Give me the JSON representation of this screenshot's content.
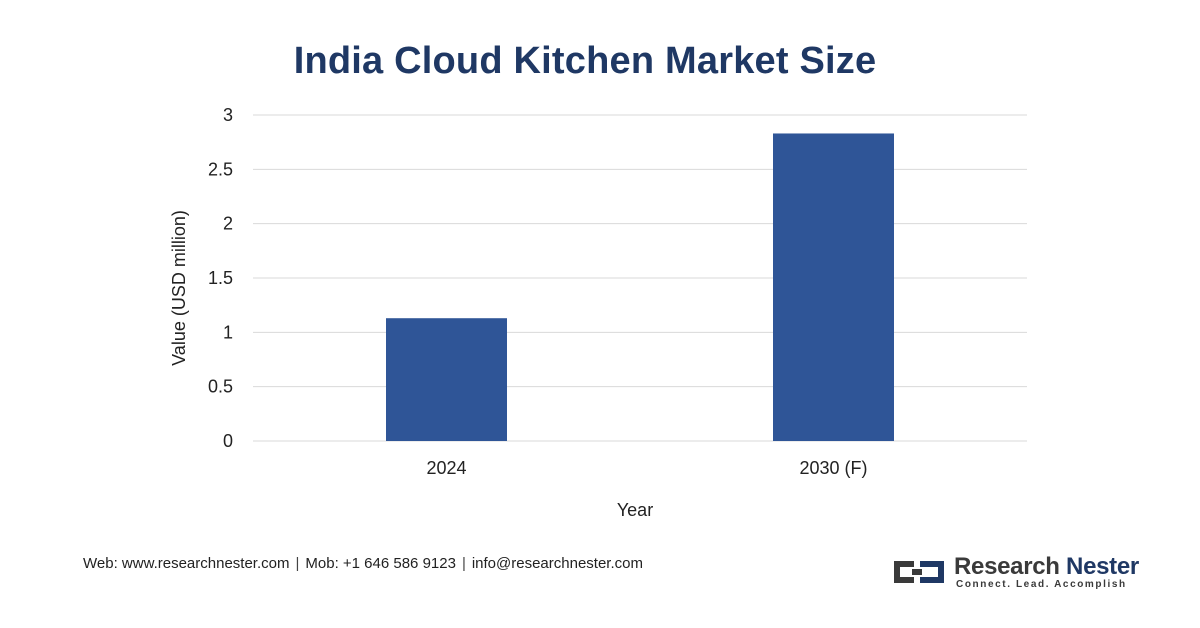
{
  "chart_data": {
    "type": "bar",
    "title": "India Cloud Kitchen Market Size",
    "xlabel": "Year",
    "ylabel": "Value (USD million)",
    "categories": [
      "2024",
      "2030 (F)"
    ],
    "values": [
      1.13,
      2.83
    ],
    "ylim": [
      0,
      3
    ],
    "yticks": [
      0,
      0.5,
      1,
      1.5,
      2,
      2.5,
      3
    ],
    "ytick_labels": [
      "0",
      "0.5",
      "1",
      "1.5",
      "2",
      "2.5",
      "3"
    ],
    "grid": true,
    "legend": "none",
    "bar_color": "#2f5597"
  },
  "footer": {
    "web": "Web: www.researchnester.com",
    "mob": "Mob: +1 646 586 9123",
    "email": "info@researchnester.com",
    "separator": "|"
  },
  "brand": {
    "name_part1": "Research",
    "name_part2": "Nester",
    "tagline": "Connect. Lead. Accomplish"
  },
  "colors": {
    "title": "#1f3864",
    "bar": "#2f5597",
    "grid": "#d9d9d9",
    "axis_text": "#222222"
  }
}
